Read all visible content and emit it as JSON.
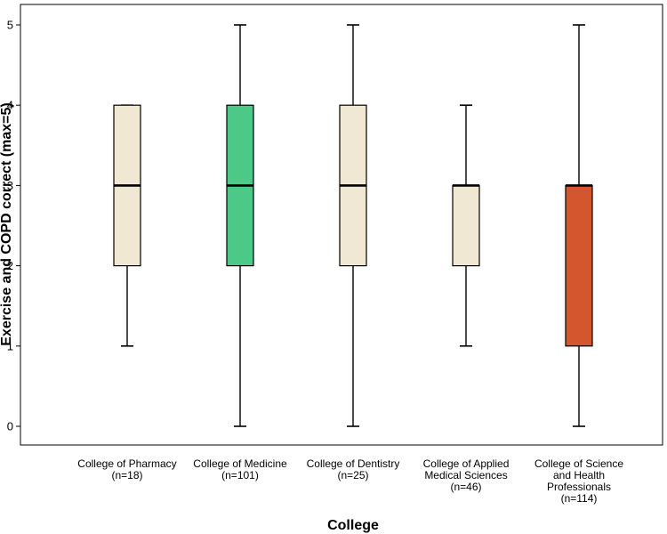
{
  "chart_data": {
    "type": "boxplot",
    "title": "",
    "xlabel": "College",
    "ylabel": "Exercise and COPD correct (max=5)",
    "ylim": [
      0,
      5
    ],
    "yticks": [
      0,
      1,
      2,
      3,
      4,
      5
    ],
    "grid": false,
    "categories": [
      {
        "label_lines": [
          "College of Pharmacy",
          "(n=18)"
        ],
        "min": 1,
        "q1": 2,
        "median": 3,
        "q3": 4,
        "max": 4,
        "fill": "#f0e8d3"
      },
      {
        "label_lines": [
          "College of Medicine",
          "(n=101)"
        ],
        "min": 0,
        "q1": 2,
        "median": 3,
        "q3": 4,
        "max": 5,
        "fill": "#4dc987"
      },
      {
        "label_lines": [
          "College of Dentistry",
          "(n=25)"
        ],
        "min": 0,
        "q1": 2,
        "median": 3,
        "q3": 4,
        "max": 5,
        "fill": "#f0e8d3"
      },
      {
        "label_lines": [
          "College of Applied",
          "Medical Sciences",
          "(n=46)"
        ],
        "min": 1,
        "q1": 2,
        "median": 3,
        "q3": 3,
        "max": 4,
        "fill": "#f0e8d3"
      },
      {
        "label_lines": [
          "College of Science",
          "and Health",
          "Professionals",
          "(n=114)"
        ],
        "min": 0,
        "q1": 1,
        "median": 3,
        "q3": 3,
        "max": 5,
        "fill": "#d4562e"
      }
    ]
  }
}
